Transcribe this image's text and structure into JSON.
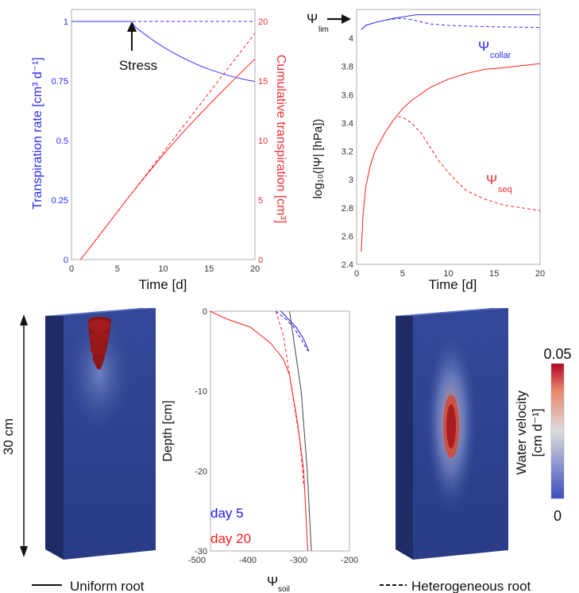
{
  "chart_data": [
    {
      "type": "line",
      "xlabel": "Time [d]",
      "ylabel_left": "Transpiration rate [cm³ d⁻¹]",
      "ylabel_right": "Cumulative transpiration [cm³]",
      "xlim": [
        0,
        20
      ],
      "ylim_left": [
        0,
        1
      ],
      "ylim_right": [
        0,
        20
      ],
      "x_ticks": [
        "0",
        "5",
        "10",
        "15",
        "20"
      ],
      "y_ticks_left": [
        "0",
        "0.25",
        "0.5",
        "0.75",
        "1"
      ],
      "y_ticks_right": [
        "0",
        "5",
        "10",
        "15",
        "20"
      ],
      "annotation": "Stress",
      "colors": {
        "rate": "#3333ff",
        "cumulative": "#ff2020"
      },
      "series": [
        {
          "axis": "left",
          "style": "solid",
          "x": [
            0,
            1,
            2,
            3,
            4,
            5,
            6,
            6.5,
            7,
            8,
            9,
            10,
            11,
            12,
            13,
            14,
            15,
            16,
            17,
            18,
            19,
            20
          ],
          "values": [
            1,
            1,
            1,
            1,
            1,
            1,
            1,
            1,
            0.975,
            0.946,
            0.918,
            0.893,
            0.87,
            0.85,
            0.831,
            0.814,
            0.799,
            0.786,
            0.774,
            0.764,
            0.755,
            0.748
          ]
        },
        {
          "axis": "left",
          "style": "dashed",
          "x": [
            0,
            20
          ],
          "values": [
            1,
            1
          ]
        },
        {
          "axis": "right",
          "style": "solid",
          "x": [
            1,
            2,
            4,
            6,
            6.5,
            8,
            10,
            12,
            14,
            16,
            18,
            20
          ],
          "values": [
            0,
            1,
            3,
            5,
            5.5,
            6.95,
            8.8,
            10.55,
            12.2,
            13.8,
            15.35,
            16.85
          ]
        },
        {
          "axis": "right",
          "style": "dashed",
          "x": [
            1,
            20
          ],
          "values": [
            0,
            19
          ]
        }
      ]
    },
    {
      "type": "line",
      "xlabel": "Time [d]",
      "ylabel": "log₁₀(|Ψ| [hPa])",
      "xlim": [
        0,
        20
      ],
      "ylim": [
        2.4,
        4.2
      ],
      "x_ticks": [
        "0",
        "5",
        "10",
        "15",
        "20"
      ],
      "y_ticks": [
        "2.4",
        "2.6",
        "2.8",
        "3",
        "3.2",
        "3.4",
        "3.6",
        "3.8",
        "4"
      ],
      "annotations": {
        "psi_lim": "Ψ",
        "psi_lim_sub": "lim",
        "collar": "Ψ",
        "collar_sub": "collar",
        "seq": "Ψ",
        "seq_sub": "seq"
      },
      "colors": {
        "collar": "#3333ff",
        "seq": "#ff2020"
      },
      "series": [
        {
          "group": "collar",
          "style": "solid",
          "x": [
            0.5,
            1,
            2,
            3,
            4,
            5,
            6,
            6.5,
            8,
            10,
            15,
            20
          ],
          "values": [
            4.06,
            4.09,
            4.11,
            4.125,
            4.14,
            4.15,
            4.16,
            4.165,
            4.165,
            4.165,
            4.165,
            4.165
          ]
        },
        {
          "group": "collar",
          "style": "dashed",
          "x": [
            0.5,
            1,
            2,
            3,
            4,
            5,
            6,
            7,
            8,
            10,
            12,
            15,
            20
          ],
          "values": [
            4.06,
            4.09,
            4.11,
            4.125,
            4.135,
            4.14,
            4.13,
            4.115,
            4.1,
            4.09,
            4.085,
            4.08,
            4.075
          ]
        },
        {
          "group": "seq",
          "style": "solid",
          "x": [
            0.5,
            0.7,
            1,
            1.5,
            2,
            3,
            4,
            5,
            6,
            8,
            10,
            12,
            14,
            16,
            18,
            20
          ],
          "values": [
            2.49,
            2.75,
            2.95,
            3.1,
            3.2,
            3.32,
            3.42,
            3.5,
            3.56,
            3.65,
            3.71,
            3.75,
            3.78,
            3.79,
            3.805,
            3.82
          ]
        },
        {
          "group": "seq",
          "style": "dashed",
          "x": [
            4.5,
            5,
            6,
            7,
            8,
            9,
            10,
            11,
            12,
            14,
            16,
            18,
            20
          ],
          "values": [
            3.445,
            3.44,
            3.4,
            3.33,
            3.23,
            3.13,
            3.05,
            2.98,
            2.92,
            2.86,
            2.82,
            2.8,
            2.78
          ]
        }
      ]
    },
    {
      "type": "line",
      "xlabel": "Ψ",
      "xlabel_sub": "soil",
      "ylabel": "Depth [cm]",
      "xlim": [
        -500,
        -200
      ],
      "ylim": [
        -30,
        0
      ],
      "x_ticks": [
        "-500",
        "-400",
        "-300",
        "-200"
      ],
      "y_ticks": [
        "0",
        "-10",
        "-20",
        "-30"
      ],
      "legend": [
        {
          "label": "day 5",
          "color": "#1a1aee"
        },
        {
          "label": "day 20",
          "color": "#ff2020"
        }
      ],
      "series": [
        {
          "name": "day 5",
          "style": "solid",
          "color": "#1a1aee",
          "x": [
            -335,
            -320,
            -305,
            -290,
            -280
          ],
          "depth": [
            0,
            -1,
            -2,
            -3.5,
            -5
          ]
        },
        {
          "name": "day 5",
          "style": "dashed",
          "color": "#1a1aee",
          "x": [
            -345,
            -325,
            -310,
            -295,
            -282
          ],
          "depth": [
            0,
            -1,
            -2,
            -3.5,
            -5
          ]
        },
        {
          "name": "day 20",
          "style": "solid",
          "color": "#ff2020",
          "x": [
            -475,
            -440,
            -395,
            -355,
            -330,
            -318,
            -302,
            -290,
            -282
          ],
          "depth": [
            0,
            -1,
            -2,
            -4,
            -6,
            -8,
            -14,
            -20,
            -30
          ]
        },
        {
          "name": "day 20",
          "style": "dashed",
          "color": "#ff2020",
          "x": [
            -345,
            -330,
            -318,
            -308,
            -298,
            -292,
            -290
          ],
          "depth": [
            0,
            -3,
            -8,
            -12,
            -16,
            -20,
            -22
          ]
        },
        {
          "name": "ref",
          "style": "solid",
          "color": "#444444",
          "x": [
            -318,
            -295,
            -283,
            -275
          ],
          "depth": [
            0,
            -10,
            -20,
            -30
          ]
        }
      ]
    }
  ],
  "labels": {
    "stress": "Stress",
    "thirty_cm": "30 cm",
    "uniform_root": "Uniform root",
    "heterogeneous_root": "Heterogeneous root",
    "colorbar_max": "0.05",
    "colorbar_min": "0",
    "colorbar_title_1": "Water velocity",
    "colorbar_title_2": "[cm d⁻¹]"
  }
}
